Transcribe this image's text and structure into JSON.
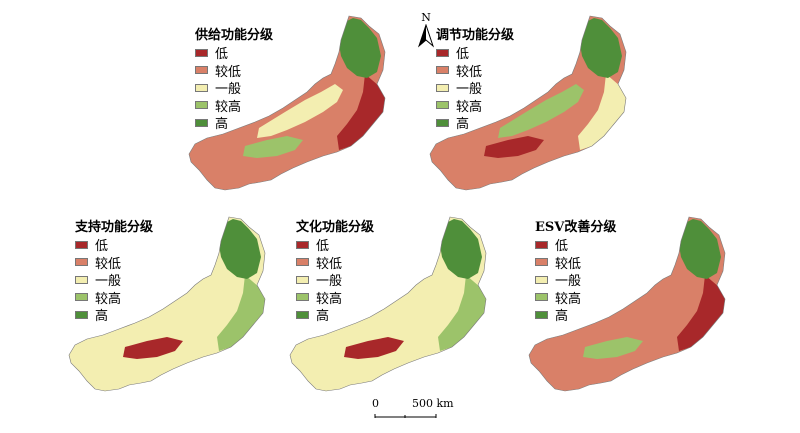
{
  "classes_ref": [
    "低",
    "较低",
    "一般",
    "较高",
    "高"
  ],
  "colors": {
    "low": "#a8282a",
    "lower": "#d98068",
    "medium": "#f3eeb1",
    "higher": "#9cc36a",
    "high": "#4f8f3a"
  },
  "north_arrow": {
    "label": "N",
    "icon": "north-arrow-icon"
  },
  "scale_bar": {
    "zero": "0",
    "distance": "500 km"
  },
  "panels": [
    {
      "id": "supply",
      "title": "供给功能分级",
      "legend": [
        "低",
        "较低",
        "一般",
        "较高",
        "高"
      ],
      "palette": {
        "base": "#d98068",
        "east": "#a8282a",
        "north": "#4f8f3a",
        "band": "#f3eeb1",
        "patch": "#9cc36a"
      }
    },
    {
      "id": "regulation",
      "title": "调节功能分级",
      "legend": [
        "低",
        "较低",
        "一般",
        "较高",
        "高"
      ],
      "palette": {
        "base": "#d98068",
        "east": "#f3eeb1",
        "north": "#4f8f3a",
        "band": "#9cc36a",
        "patch": "#a8282a"
      }
    },
    {
      "id": "support",
      "title": "支持功能分级",
      "legend": [
        "低",
        "较低",
        "一般",
        "较高",
        "高"
      ],
      "palette": {
        "base": "#f3eeb1",
        "east": "#9cc36a",
        "north": "#4f8f3a",
        "band": "#f3eeb1",
        "patch": "#a8282a"
      }
    },
    {
      "id": "culture",
      "title": "文化功能分级",
      "legend": [
        "低",
        "较低",
        "一般",
        "较高",
        "高"
      ],
      "palette": {
        "base": "#f3eeb1",
        "east": "#9cc36a",
        "north": "#4f8f3a",
        "band": "#f3eeb1",
        "patch": "#a8282a"
      }
    },
    {
      "id": "esv",
      "title": "ESV改善分级",
      "legend": [
        "低",
        "较低",
        "一般",
        "较高",
        "高"
      ],
      "palette": {
        "base": "#d98068",
        "east": "#a8282a",
        "north": "#4f8f3a",
        "band": "#d98068",
        "patch": "#9cc36a"
      }
    }
  ]
}
